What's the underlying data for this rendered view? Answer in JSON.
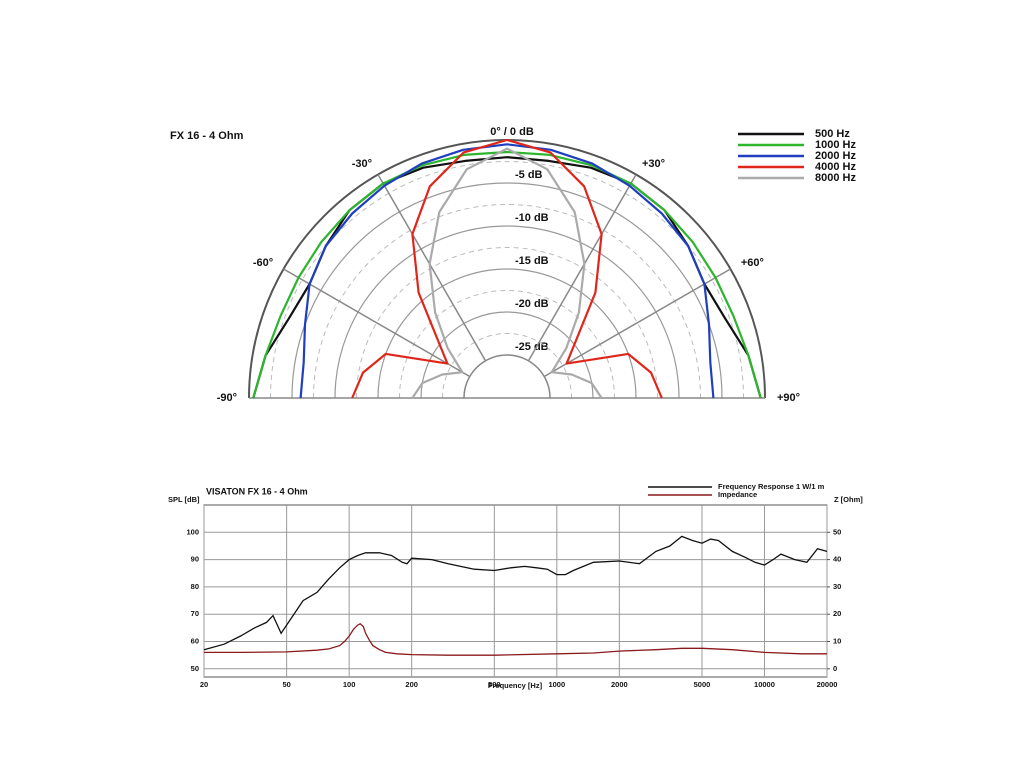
{
  "chart_data": [
    {
      "type": "polar",
      "title": "FX 16 - 4 Ohm",
      "theta": [
        -90,
        -80,
        -70,
        -60,
        -50,
        -40,
        -30,
        -20,
        -10,
        0,
        10,
        20,
        30,
        40,
        50,
        60,
        70,
        80,
        90
      ],
      "rlim": [
        -30,
        0
      ],
      "rticks": [
        {
          "value": 0,
          "label": "0° / 0 dB"
        },
        {
          "value": -5,
          "label": "-5 dB"
        },
        {
          "value": -10,
          "label": "-10 dB"
        },
        {
          "value": -15,
          "label": "-15 dB"
        },
        {
          "value": -20,
          "label": "-20 dB"
        },
        {
          "value": -25,
          "label": "-25 dB"
        }
      ],
      "thetaticks": [
        {
          "value": -90,
          "label": "-90°"
        },
        {
          "value": -60,
          "label": "-60°"
        },
        {
          "value": -30,
          "label": "-30°"
        },
        {
          "value": 30,
          "label": "+30°"
        },
        {
          "value": 60,
          "label": "+60°"
        },
        {
          "value": 90,
          "label": "+90°"
        }
      ],
      "series": [
        {
          "name": "500 Hz",
          "color": "#111111",
          "values": [
            -0.5,
            -1.5,
            -3,
            -3.5,
            -2.5,
            -1.5,
            -1.2,
            -1.5,
            -2,
            -2,
            -2,
            -1.5,
            -1.2,
            -1.5,
            -2.5,
            -3.5,
            -3,
            -1.5,
            -0.5
          ]
        },
        {
          "name": "1000 Hz",
          "color": "#2db52d",
          "values": [
            -0.5,
            -1.5,
            -2,
            -2,
            -1.8,
            -1.5,
            -1.2,
            -1.2,
            -1.3,
            -1.4,
            -1.3,
            -1.2,
            -1.2,
            -1.5,
            -1.8,
            -2,
            -2,
            -1.5,
            -0.5
          ]
        },
        {
          "name": "2000 Hz",
          "color": "#1f3fbf",
          "values": [
            -6,
            -6,
            -5,
            -3.5,
            -2.5,
            -2,
            -1.5,
            -1,
            -0.7,
            -0.5,
            -0.7,
            -1,
            -1.5,
            -2,
            -2.5,
            -3.5,
            -5,
            -6,
            -6
          ]
        },
        {
          "name": "4000 Hz",
          "color": "#e0261b",
          "values": [
            -12,
            -13,
            -15,
            -22,
            -19.5,
            -14,
            -8,
            -3.8,
            -1,
            0,
            -1,
            -3.8,
            -8,
            -14,
            -19.5,
            -22,
            -15,
            -13,
            -12
          ]
        },
        {
          "name": "8000 Hz",
          "color": "#aaaaaa",
          "values": [
            -19,
            -20,
            -22,
            -24,
            -21,
            -17,
            -12,
            -7,
            -3,
            -1,
            -3,
            -7,
            -12,
            -17,
            -21,
            -24,
            -22,
            -20,
            -19
          ]
        }
      ]
    },
    {
      "type": "line",
      "title": "VISATON FX 16 - 4 Ohm",
      "y_label": "SPL [dB]",
      "y2_label": "Z [Ohm]",
      "x_label": "Frequency [Hz]",
      "xscale": "log",
      "xlim": [
        20,
        20000
      ],
      "xticks": [
        20,
        50,
        100,
        200,
        500,
        1000,
        2000,
        5000,
        10000,
        20000
      ],
      "ylim": [
        47,
        110
      ],
      "yticks": [
        50,
        60,
        70,
        80,
        90,
        100
      ],
      "y2lim": [
        -3,
        60
      ],
      "y2ticks": [
        0,
        10,
        20,
        30,
        40,
        50
      ],
      "grid": true,
      "series": [
        {
          "name": "Frequency Response 1 W/1 m",
          "color": "#111111",
          "x": [
            20,
            25,
            30,
            35,
            40,
            43,
            47,
            50,
            60,
            70,
            80,
            90,
            100,
            110,
            120,
            140,
            160,
            180,
            190,
            200,
            250,
            300,
            400,
            500,
            600,
            700,
            800,
            900,
            1000,
            1100,
            1200,
            1500,
            2000,
            2500,
            3000,
            3500,
            4000,
            4500,
            5000,
            5500,
            6000,
            7000,
            8000,
            9000,
            10000,
            11000,
            12000,
            14000,
            16000,
            18000,
            20000
          ],
          "values": [
            57,
            59,
            62,
            65,
            67,
            69.5,
            63,
            66,
            75,
            78,
            83,
            87,
            90,
            91.5,
            92.5,
            92.5,
            91.5,
            89,
            88.5,
            90.5,
            90,
            88.5,
            86.5,
            86,
            87,
            87.5,
            87,
            86.5,
            84.5,
            84.5,
            86,
            89,
            89.5,
            88.5,
            93,
            95,
            98.5,
            97,
            96,
            97.5,
            97,
            93,
            91,
            89,
            88,
            90,
            92,
            90,
            89,
            94,
            93
          ]
        },
        {
          "name": "Impedance",
          "color": "#8b1a1a",
          "axis": "y2",
          "x": [
            20,
            30,
            50,
            70,
            80,
            90,
            95,
            100,
            105,
            110,
            113,
            117,
            120,
            125,
            130,
            140,
            150,
            170,
            200,
            300,
            500,
            1000,
            1500,
            2000,
            3000,
            4000,
            5000,
            7000,
            10000,
            15000,
            20000
          ],
          "values": [
            6,
            6,
            6.2,
            6.8,
            7.3,
            8.5,
            10,
            12,
            14.5,
            16,
            16.5,
            15.5,
            13,
            10.5,
            8.5,
            7,
            6,
            5.5,
            5.2,
            5,
            5,
            5.5,
            5.8,
            6.5,
            7,
            7.5,
            7.5,
            7,
            6,
            5.5,
            5.5
          ]
        }
      ]
    }
  ]
}
